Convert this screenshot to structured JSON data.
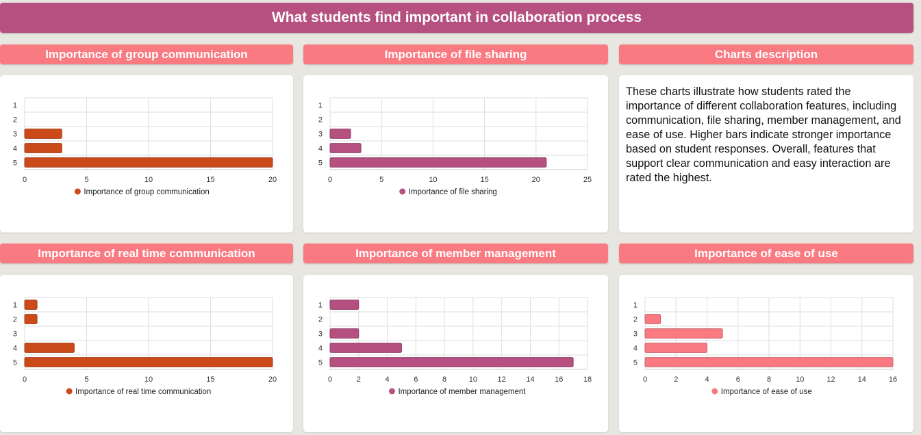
{
  "title": "What students find important in collaboration process",
  "description": {
    "header": "Charts description",
    "text": "These charts illustrate how students rated the importance of different collaboration features, including communication, file sharing, member management, and ease of use. Higher bars indicate stronger importance based on student responses. Overall, features that support clear communication and easy interaction are rated the highest."
  },
  "chart_data": [
    {
      "id": "group",
      "type": "bar",
      "orientation": "horizontal",
      "header": "Importance of group communication",
      "categories": [
        "1",
        "2",
        "3",
        "4",
        "5"
      ],
      "series": [
        {
          "name": "Importance of group communication",
          "values": [
            0,
            0,
            3,
            3,
            20
          ]
        }
      ],
      "xlim": [
        0,
        20
      ],
      "xticks": [
        0,
        5,
        10,
        15,
        20
      ],
      "color": "#cc4a1a",
      "grid": true,
      "legend": "bottom"
    },
    {
      "id": "file",
      "type": "bar",
      "orientation": "horizontal",
      "header": "Importance of file sharing",
      "categories": [
        "1",
        "2",
        "3",
        "4",
        "5"
      ],
      "series": [
        {
          "name": "Importance of file sharing",
          "values": [
            0,
            0,
            2,
            3,
            21
          ]
        }
      ],
      "xlim": [
        0,
        25
      ],
      "xticks": [
        0,
        5,
        10,
        15,
        20,
        25
      ],
      "color": "#b55081",
      "grid": true,
      "legend": "bottom"
    },
    {
      "id": "realtime",
      "type": "bar",
      "orientation": "horizontal",
      "header": "Importance of real time communication",
      "categories": [
        "1",
        "2",
        "3",
        "4",
        "5"
      ],
      "series": [
        {
          "name": "Importance of real time communication",
          "values": [
            1,
            1,
            0,
            4,
            20
          ]
        }
      ],
      "xlim": [
        0,
        20
      ],
      "xticks": [
        0,
        5,
        10,
        15,
        20
      ],
      "color": "#cc4a1a",
      "grid": true,
      "legend": "bottom"
    },
    {
      "id": "member",
      "type": "bar",
      "orientation": "horizontal",
      "header": "Importance of member management",
      "categories": [
        "1",
        "2",
        "3",
        "4",
        "5"
      ],
      "series": [
        {
          "name": "Importance of member management",
          "values": [
            2,
            0,
            2,
            5,
            17
          ]
        }
      ],
      "xlim": [
        0,
        18
      ],
      "xticks": [
        0,
        2,
        4,
        6,
        8,
        10,
        12,
        14,
        16,
        18
      ],
      "color": "#b55081",
      "grid": true,
      "legend": "bottom"
    },
    {
      "id": "ease",
      "type": "bar",
      "orientation": "horizontal",
      "header": "Importance of ease of use",
      "categories": [
        "1",
        "2",
        "3",
        "4",
        "5"
      ],
      "series": [
        {
          "name": "Importance of ease of use",
          "values": [
            0,
            1,
            5,
            4,
            16
          ]
        }
      ],
      "xlim": [
        0,
        16
      ],
      "xticks": [
        0,
        2,
        4,
        6,
        8,
        10,
        12,
        14,
        16
      ],
      "color": "#fa7a82",
      "grid": true,
      "legend": "bottom"
    }
  ]
}
